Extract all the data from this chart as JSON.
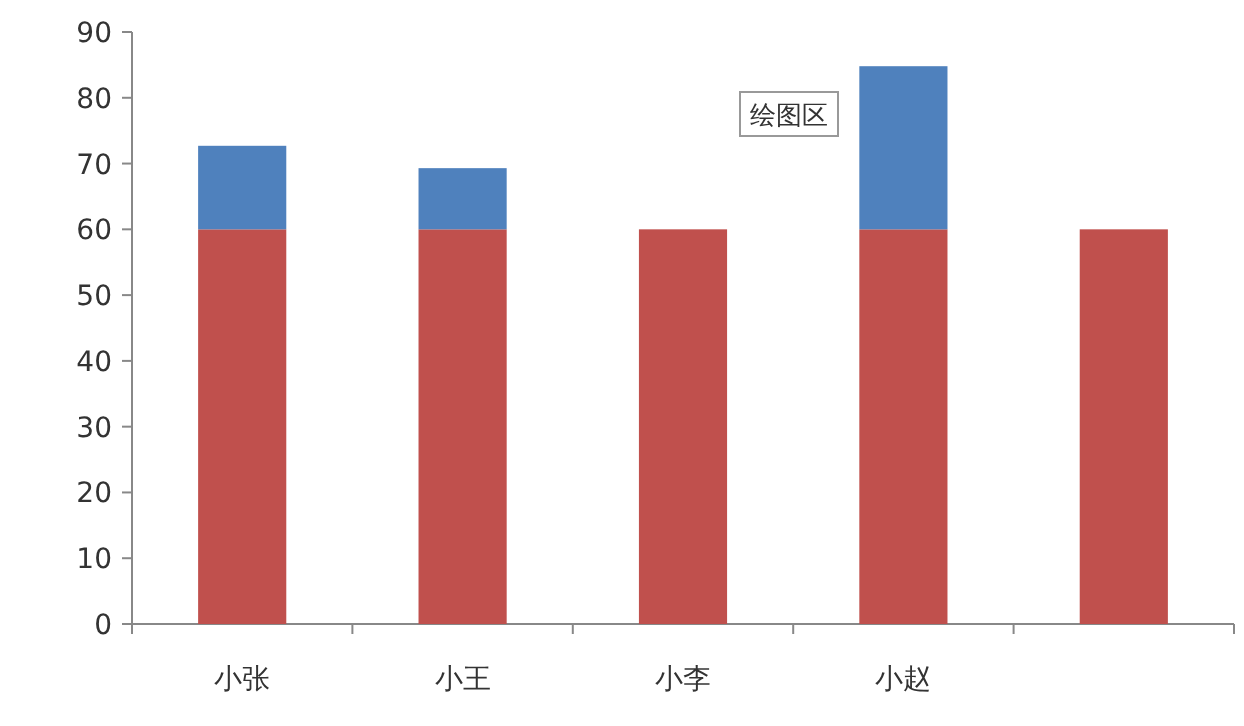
{
  "chart_data": {
    "type": "bar",
    "stacked": true,
    "categories": [
      "小张",
      "小王",
      "小李",
      "小赵",
      null
    ],
    "series": [
      {
        "color": "#c0504d",
        "values": [
          60,
          60,
          60,
          60,
          60
        ]
      },
      {
        "color": "#4f81bd",
        "values": [
          12.7,
          9.3,
          null,
          24.8,
          null
        ]
      }
    ],
    "ylim": [
      0,
      90
    ],
    "yticks": [
      0,
      10,
      20,
      30,
      40,
      50,
      60,
      70,
      80,
      90
    ],
    "annotations": [
      "绘图区"
    ]
  }
}
